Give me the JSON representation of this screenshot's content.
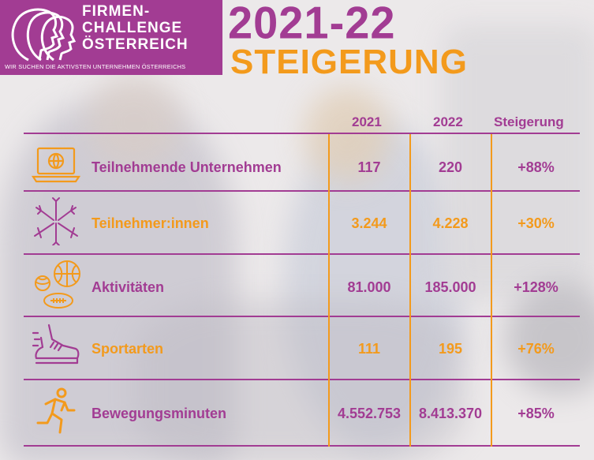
{
  "header": {
    "logo_line1": "FIRMEN-",
    "logo_line2": "CHALLENGE",
    "logo_line3": "ÖSTERREICH",
    "logo_tagline": "WIR SUCHEN DIE AKTIVSTEN UNTERNEHMEN ÖSTERREICHS",
    "headline": "2021-22",
    "subheadline": "STEIGERUNG"
  },
  "columns": [
    "2021",
    "2022",
    "Steigerung"
  ],
  "rows": [
    {
      "label": "Teilnehmende Unternehmen",
      "v2021": "117",
      "v2022": "220",
      "increase": "+88%",
      "icon": "laptop-globe-icon"
    },
    {
      "label": "Teilnehmer:innen",
      "v2021": "3.244",
      "v2022": "4.228",
      "increase": "+30%",
      "icon": "hands-together-icon"
    },
    {
      "label": "Aktivitäten",
      "v2021": "81.000",
      "v2022": "185.000",
      "increase": "+128%",
      "icon": "balls-icon"
    },
    {
      "label": "Sportarten",
      "v2021": "111",
      "v2022": "195",
      "increase": "+76%",
      "icon": "running-shoe-icon"
    },
    {
      "label": "Bewegungsminuten",
      "v2021": "4.552.753",
      "v2022": "8.413.370",
      "increase": "+85%",
      "icon": "runner-icon"
    }
  ],
  "colors": {
    "purple": "#a23c93",
    "orange": "#f39a1c"
  }
}
